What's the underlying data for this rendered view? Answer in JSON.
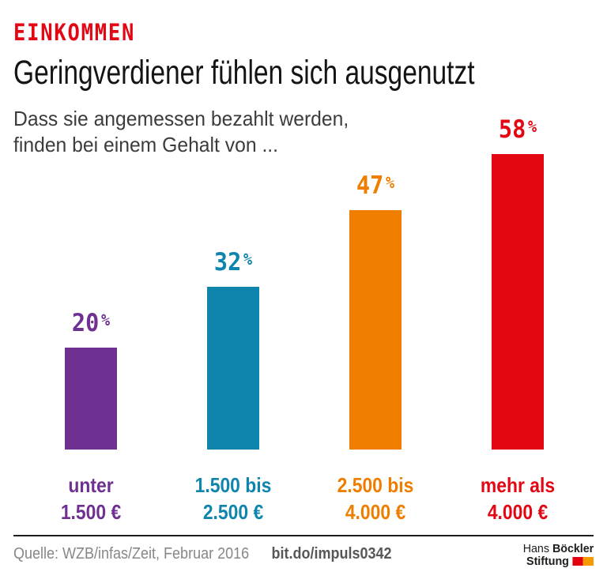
{
  "header": {
    "kicker": "EINKOMMEN",
    "title": "Geringverdiener fühlen sich ausgenutzt",
    "subtitle_line1": "Dass sie angemessen bezahlt werden,",
    "subtitle_line2": "finden bei einem Gehalt von ..."
  },
  "chart_data": {
    "type": "bar",
    "title": "Geringverdiener fühlen sich ausgenutzt",
    "subtitle": "Dass sie angemessen bezahlt werden, finden bei einem Gehalt von ...",
    "unit": "%",
    "categories": [
      [
        "unter",
        "1.500 €"
      ],
      [
        "1.500 bis",
        "2.500 €"
      ],
      [
        "2.500 bis",
        "4.000 €"
      ],
      [
        "mehr als",
        "4.000 €"
      ]
    ],
    "values": [
      20,
      32,
      47,
      58
    ],
    "value_labels": [
      "20 %",
      "32 %",
      "47 %",
      "58 %"
    ],
    "colors": [
      "#6f3191",
      "#0f85ad",
      "#ef7d00",
      "#e30613"
    ],
    "ylim": [
      0,
      60
    ],
    "grid": false,
    "legend": "none",
    "axis_ticks": "none"
  },
  "footer": {
    "source": "Quelle: WZB/infas/Zeit, Februar 2016",
    "link": "bit.do/impuls0342",
    "logo": {
      "line1_light": "Hans",
      "line1_bold": "Böckler",
      "line2_bold": "Stiftung",
      "block_colors": [
        "#e3000f",
        "#f59b00"
      ]
    }
  },
  "colors": {
    "accent_red": "#e30613",
    "title_black": "#141414",
    "subtitle_gray": "#3c3c3b",
    "source_gray": "#878787",
    "link_gray": "#575756",
    "rule_black": "#1d1d1b"
  }
}
